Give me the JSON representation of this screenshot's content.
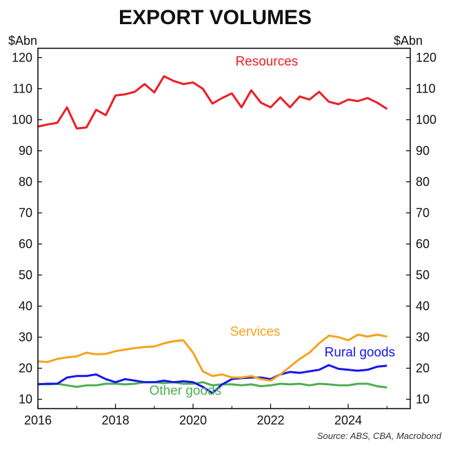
{
  "chart_data": {
    "type": "line",
    "title": "EXPORT VOLUMES",
    "y_unit_left": "$Abn",
    "y_unit_right": "$Abn",
    "ylim": [
      7,
      123
    ],
    "yticks": [
      10,
      20,
      30,
      40,
      50,
      60,
      70,
      80,
      90,
      100,
      110,
      120
    ],
    "xlim": [
      2016,
      2025.6
    ],
    "xticks": [
      2016,
      2018,
      2020,
      2022,
      2024
    ],
    "grid": false,
    "source": "Source: ABS, CBA, Macrobond",
    "x": [
      2016.0,
      2016.25,
      2016.5,
      2016.75,
      2017.0,
      2017.25,
      2017.5,
      2017.75,
      2018.0,
      2018.25,
      2018.5,
      2018.75,
      2019.0,
      2019.25,
      2019.5,
      2019.75,
      2020.0,
      2020.25,
      2020.5,
      2020.75,
      2021.0,
      2021.25,
      2021.5,
      2021.75,
      2022.0,
      2022.25,
      2022.5,
      2022.75,
      2023.0,
      2023.25,
      2023.5,
      2023.75,
      2024.0,
      2024.25,
      2024.5,
      2024.75,
      2025.0
    ],
    "series": [
      {
        "name": "Resources",
        "color": "#ee1c25",
        "values": [
          97.8,
          98.5,
          99.0,
          104.0,
          97.2,
          97.5,
          103.2,
          101.5,
          107.8,
          108.2,
          109.0,
          111.5,
          108.8,
          114.0,
          112.5,
          111.5,
          112.0,
          110.0,
          105.2,
          107.0,
          108.5,
          104.0,
          109.5,
          105.5,
          104.0,
          107.2,
          104.0,
          107.5,
          106.5,
          109.0,
          105.8,
          105.0,
          106.5,
          106.0,
          107.0,
          105.5,
          103.5
        ]
      },
      {
        "name": "Services",
        "color": "#f5a31a",
        "values": [
          22.2,
          22.0,
          23.0,
          23.5,
          23.8,
          25.0,
          24.5,
          24.6,
          25.5,
          26.0,
          26.5,
          26.8,
          27.0,
          28.0,
          28.7,
          29.0,
          25.0,
          19.0,
          17.5,
          18.0,
          17.0,
          17.0,
          17.5,
          16.5,
          16.0,
          18.0,
          20.5,
          23.0,
          25.0,
          28.0,
          30.5,
          30.0,
          29.0,
          30.8,
          30.2,
          30.8,
          30.2
        ]
      },
      {
        "name": "Rural goods",
        "color": "#1515ee",
        "values": [
          14.8,
          15.0,
          15.0,
          17.0,
          17.5,
          17.5,
          18.0,
          16.5,
          15.5,
          16.5,
          16.0,
          15.5,
          15.5,
          16.0,
          15.5,
          15.8,
          15.5,
          14.0,
          12.0,
          14.8,
          16.5,
          16.8,
          17.0,
          17.0,
          16.5,
          18.0,
          18.8,
          18.5,
          19.0,
          19.5,
          21.0,
          19.8,
          19.5,
          19.2,
          19.5,
          20.5,
          20.8
        ]
      },
      {
        "name": "Other goods",
        "color": "#4caf50",
        "values": [
          15.0,
          14.8,
          15.0,
          14.5,
          14.0,
          14.5,
          14.5,
          15.0,
          15.0,
          14.8,
          15.0,
          15.5,
          15.5,
          15.2,
          15.5,
          15.0,
          15.0,
          15.5,
          14.5,
          14.8,
          14.8,
          14.5,
          14.8,
          14.2,
          14.5,
          15.0,
          14.8,
          15.0,
          14.5,
          15.0,
          14.8,
          14.5,
          14.5,
          15.0,
          15.0,
          14.2,
          13.8
        ]
      }
    ]
  }
}
